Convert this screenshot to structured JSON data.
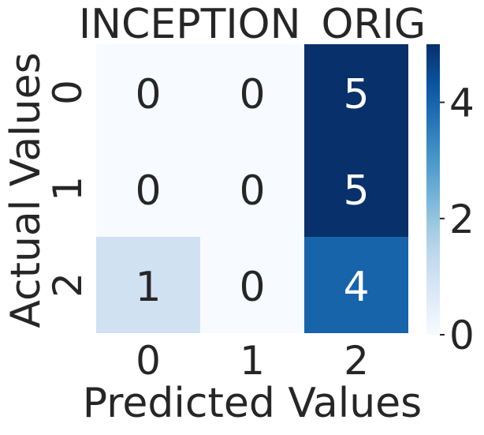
{
  "chart_data": {
    "type": "heatmap",
    "title": "INCEPTION_ORIG",
    "xlabel": "Predicted Values",
    "ylabel": "Actual Values",
    "x_categories": [
      "0",
      "1",
      "2"
    ],
    "y_categories": [
      "0",
      "1",
      "2"
    ],
    "values": [
      [
        0,
        0,
        5
      ],
      [
        0,
        0,
        5
      ],
      [
        1,
        0,
        4
      ]
    ],
    "annotations": [
      [
        "0",
        "0",
        "5"
      ],
      [
        "0",
        "0",
        "5"
      ],
      [
        "1",
        "0",
        "4"
      ]
    ],
    "colormap": "Blues",
    "vmin": 0,
    "vmax": 5,
    "colorbar_ticks": [
      0,
      2,
      4
    ],
    "colorbar_tick_labels": [
      "0",
      "2",
      "4"
    ],
    "colors": {
      "low": "#f7fbff",
      "high": "#08306b",
      "text_dark": "#262626",
      "text_light": "#ffffff"
    }
  }
}
